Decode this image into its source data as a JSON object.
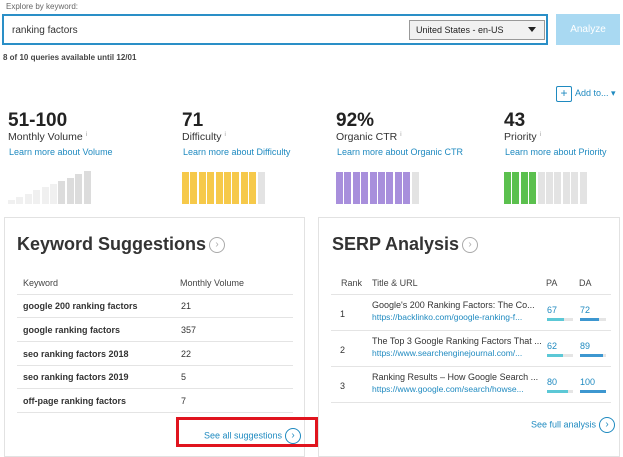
{
  "search": {
    "label": "Explore by keyword:",
    "query": "ranking factors",
    "locale": "United States - en-US",
    "button": "Analyze",
    "quota": "8 of 10 queries available until 12/01"
  },
  "add_to": "Add to...",
  "metrics": [
    {
      "value": "51-100",
      "name": "Monthly Volume",
      "link": "Learn more about Volume"
    },
    {
      "value": "71",
      "name": "Difficulty",
      "link": "Learn more about Difficulty"
    },
    {
      "value": "92%",
      "name": "Organic CTR",
      "link": "Learn more about Organic CTR"
    },
    {
      "value": "43",
      "name": "Priority",
      "link": "Learn more about Priority"
    }
  ],
  "keyword_suggestions": {
    "title": "Keyword Suggestions",
    "columns": [
      "Keyword",
      "Monthly Volume"
    ],
    "rows": [
      [
        "google 200 ranking factors",
        "21"
      ],
      [
        "google ranking factors",
        "357"
      ],
      [
        "seo ranking factors 2018",
        "22"
      ],
      [
        "seo ranking factors 2019",
        "5"
      ],
      [
        "off-page ranking factors",
        "7"
      ]
    ],
    "footer": "See all suggestions"
  },
  "serp_analysis": {
    "title": "SERP Analysis",
    "columns": [
      "Rank",
      "Title & URL",
      "PA",
      "DA"
    ],
    "rows": [
      {
        "rank": "1",
        "title": "Google's 200 Ranking Factors: The Co...",
        "url": "https://backlinko.com/google-ranking-f...",
        "pa": 67,
        "da": 72
      },
      {
        "rank": "2",
        "title": "The Top 3 Google Ranking Factors That ...",
        "url": "https://www.searchenginejournal.com/...",
        "pa": 62,
        "da": 89
      },
      {
        "rank": "3",
        "title": "Ranking Results – How Google Search ...",
        "url": "https://www.google.com/search/howse...",
        "pa": 80,
        "da": 100
      }
    ],
    "footer": "See full analysis"
  }
}
